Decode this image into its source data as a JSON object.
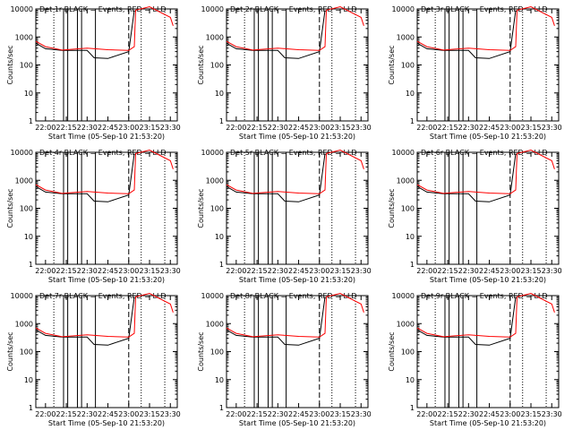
{
  "chart_data": [
    {
      "type": "line",
      "title": "Det 1r BLACK = Events, RED = LLD",
      "xlabel": "Start Time (05-Sep-10 21:53:20)",
      "ylabel": "Counts/sec"
    },
    {
      "type": "line",
      "title": "Det 2r BLACK = Events, RED = LLD",
      "xlabel": "Start Time (05-Sep-10 21:53:20)",
      "ylabel": "Counts/sec"
    },
    {
      "type": "line",
      "title": "Det 3r BLACK = Events, RED = LLD",
      "xlabel": "Start Time (05-Sep-10 21:53:20)",
      "ylabel": "Counts/sec"
    },
    {
      "type": "line",
      "title": "Det 4r BLACK = Events, RED = LLD",
      "xlabel": "Start Time (05-Sep-10 21:53:20)",
      "ylabel": "Counts/sec"
    },
    {
      "type": "line",
      "title": "Det 5r BLACK = Events, RED = LLD",
      "xlabel": "Start Time (05-Sep-10 21:53:20)",
      "ylabel": "Counts/sec"
    },
    {
      "type": "line",
      "title": "Det 6r BLACK = Events, RED = LLD",
      "xlabel": "Start Time (05-Sep-10 21:53:20)",
      "ylabel": "Counts/sec"
    },
    {
      "type": "line",
      "title": "Det 7r BLACK = Events, RED = LLD",
      "xlabel": "Start Time (05-Sep-10 21:53:20)",
      "ylabel": "Counts/sec"
    },
    {
      "type": "line",
      "title": "Det 8r BLACK = Events, RED = LLD",
      "xlabel": "Start Time (05-Sep-10 21:53:20)",
      "ylabel": "Counts/sec"
    },
    {
      "type": "line",
      "title": "Det 9r BLACK = Events, RED = LLD",
      "xlabel": "Start Time (05-Sep-10 21:53:20)",
      "ylabel": "Counts/sec"
    }
  ],
  "shared": {
    "x_ticks": [
      "22:00",
      "22:15",
      "22:30",
      "22:45",
      "23:00",
      "23:15",
      "23:30"
    ],
    "y_ticks": [
      "1",
      "10",
      "100",
      "1000",
      "10000"
    ],
    "series": [
      {
        "name": "Events",
        "color": "#000000",
        "x": [
          "21:53",
          "22:00",
          "22:12",
          "22:15",
          "22:30",
          "22:35",
          "22:45",
          "23:00",
          "23:04"
        ],
        "y": [
          600,
          380,
          330,
          330,
          330,
          180,
          170,
          300,
          9000
        ]
      },
      {
        "name": "LLD",
        "color": "#ff0000",
        "x": [
          "21:53",
          "22:00",
          "22:12",
          "22:15",
          "22:30",
          "22:45",
          "23:00",
          "23:04",
          "23:05",
          "23:15",
          "23:30",
          "23:32"
        ],
        "y": [
          700,
          450,
          340,
          350,
          400,
          350,
          330,
          450,
          9000,
          12000,
          5000,
          2500
        ]
      }
    ]
  }
}
